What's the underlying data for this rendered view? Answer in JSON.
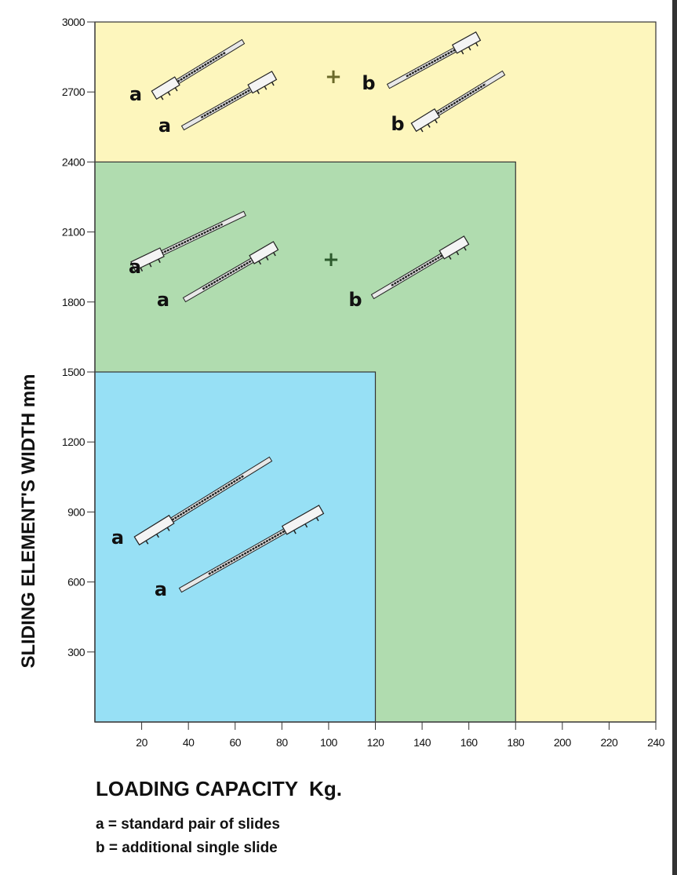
{
  "chart_data": {
    "type": "area",
    "title": "",
    "xlabel": "LOADING CAPACITY  Kg.",
    "ylabel": "SLIDING ELEMENT'S WIDTH  mm",
    "xlim": [
      0,
      240
    ],
    "ylim": [
      0,
      3000
    ],
    "x_ticks": [
      20,
      40,
      60,
      80,
      100,
      120,
      140,
      160,
      180,
      200,
      220,
      240
    ],
    "y_ticks": [
      300,
      600,
      900,
      1200,
      1500,
      1800,
      2100,
      2400,
      2700,
      3000
    ],
    "regions": [
      {
        "name": "yellow",
        "max_load": 240,
        "max_width": 3000,
        "color": "#fdf6bd",
        "config": "a + b (2 additional)",
        "labels": [
          "a",
          "a",
          "+",
          "b",
          "b"
        ]
      },
      {
        "name": "green",
        "max_load": 180,
        "max_width": 2400,
        "color": "#b0dcaf",
        "config": "a + b (1 additional)",
        "labels": [
          "a",
          "a",
          "+",
          "b"
        ]
      },
      {
        "name": "blue",
        "max_load": 120,
        "max_width": 1500,
        "color": "#97e0f5",
        "config": "a",
        "labels": [
          "a",
          "a"
        ]
      }
    ],
    "plus_colors": {
      "yellow": "#6b6a2a",
      "green": "#2d5a2d"
    }
  },
  "legend": {
    "a": "a = standard pair of slides",
    "b": "b = additional single slide"
  }
}
